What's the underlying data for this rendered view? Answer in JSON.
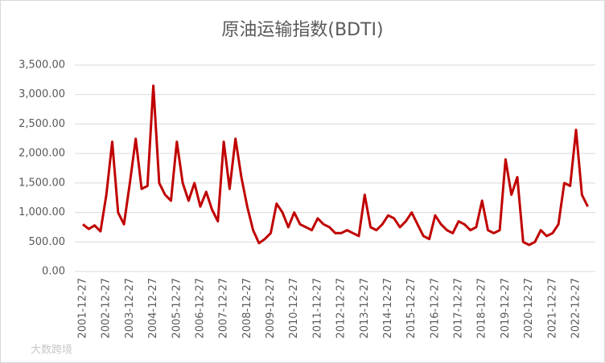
{
  "chart_data": {
    "type": "line",
    "title": "原油运输指数(BDTI)",
    "watermark": "大数跨境",
    "categories": [
      "2001-12-27",
      null,
      null,
      null,
      "2002-12-27",
      null,
      null,
      null,
      "2003-12-27",
      null,
      null,
      null,
      "2004-12-27",
      null,
      null,
      null,
      "2005-12-27",
      null,
      null,
      null,
      "2006-12-27",
      null,
      null,
      null,
      "2007-12-27",
      null,
      null,
      null,
      "2008-12-27",
      null,
      null,
      null,
      "2009-12-27",
      null,
      null,
      null,
      "2010-12-27",
      null,
      null,
      null,
      "2011-12-27",
      null,
      null,
      null,
      "2012-12-27",
      null,
      null,
      null,
      "2013-12-27",
      null,
      null,
      null,
      "2014-12-27",
      null,
      null,
      null,
      "2015-12-27",
      null,
      null,
      null,
      "2016-12-27",
      null,
      null,
      null,
      "2017-12-27",
      null,
      null,
      null,
      "2018-12-27",
      null,
      null,
      null,
      "2019-12-27",
      null,
      null,
      null,
      "2020-12-27",
      null,
      null,
      null,
      "2021-12-27",
      null,
      null,
      null,
      "2022-12-27",
      null,
      null
    ],
    "series": [
      {
        "name": "BDTI",
        "color": "#c00000",
        "values": [
          800,
          720,
          780,
          680,
          1300,
          2200,
          1000,
          800,
          1500,
          2250,
          1400,
          1450,
          3150,
          1500,
          1300,
          1200,
          2200,
          1500,
          1200,
          1500,
          1100,
          1350,
          1050,
          850,
          2200,
          1400,
          2250,
          1600,
          1100,
          700,
          480,
          550,
          650,
          1150,
          1000,
          750,
          1000,
          800,
          750,
          700,
          900,
          800,
          750,
          650,
          650,
          700,
          650,
          600,
          1300,
          750,
          700,
          800,
          950,
          900,
          750,
          850,
          1000,
          800,
          600,
          550,
          950,
          800,
          700,
          650,
          850,
          800,
          700,
          750,
          1200,
          700,
          650,
          700,
          1900,
          1300,
          1600,
          500,
          450,
          500,
          700,
          600,
          650,
          800,
          1500,
          1450,
          2400,
          1300,
          1100
        ]
      }
    ],
    "ylim": [
      0,
      3500
    ],
    "yticks": [
      {
        "value": 0,
        "label": "0.00"
      },
      {
        "value": 500,
        "label": "500.00"
      },
      {
        "value": 1000,
        "label": "1,000.00"
      },
      {
        "value": 1500,
        "label": "1,500.00"
      },
      {
        "value": 2000,
        "label": "2,000.00"
      },
      {
        "value": 2500,
        "label": "2,500.00"
      },
      {
        "value": 3000,
        "label": "3,000.00"
      },
      {
        "value": 3500,
        "label": "3,500.00"
      }
    ],
    "grid": true
  }
}
